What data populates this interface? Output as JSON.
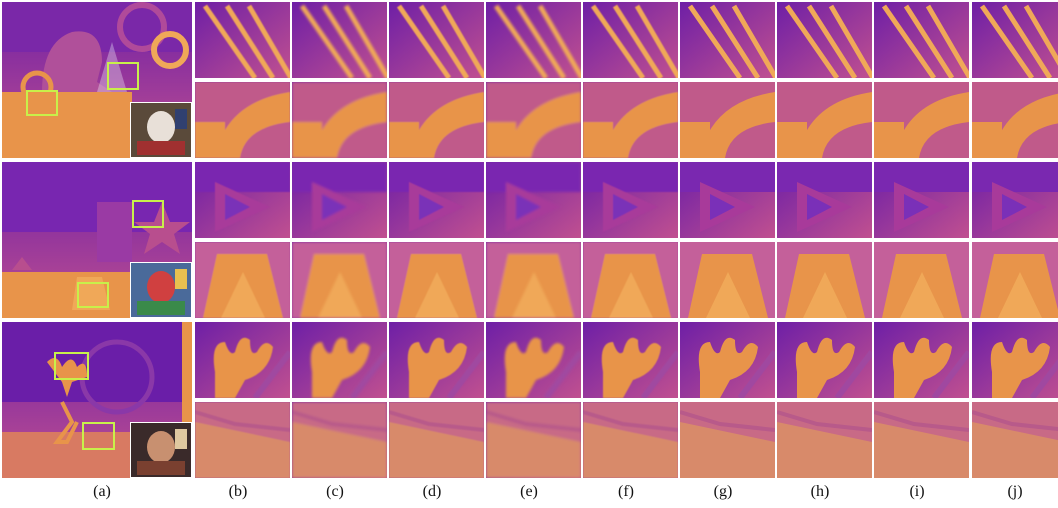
{
  "figure": {
    "columns": [
      "(a)",
      "(b)",
      "(c)",
      "(d)",
      "(e)",
      "(f)",
      "(g)",
      "(h)",
      "(i)",
      "(j)"
    ],
    "colors": {
      "deep_purple": "#6e1fa6",
      "mid_purple": "#9a3fa0",
      "magenta": "#c05090",
      "orange": "#e8944a",
      "light_orange": "#f0a858",
      "selection_box": "#c8f04a"
    },
    "rows": [
      {
        "scene": "art",
        "thumb_content": [
          "rings",
          "poles"
        ]
      },
      {
        "scene": "stars",
        "thumb_content": [
          "triangle-top",
          "trapezoid"
        ]
      },
      {
        "scene": "antlers",
        "thumb_content": [
          "antler",
          "table-edge"
        ]
      }
    ]
  }
}
